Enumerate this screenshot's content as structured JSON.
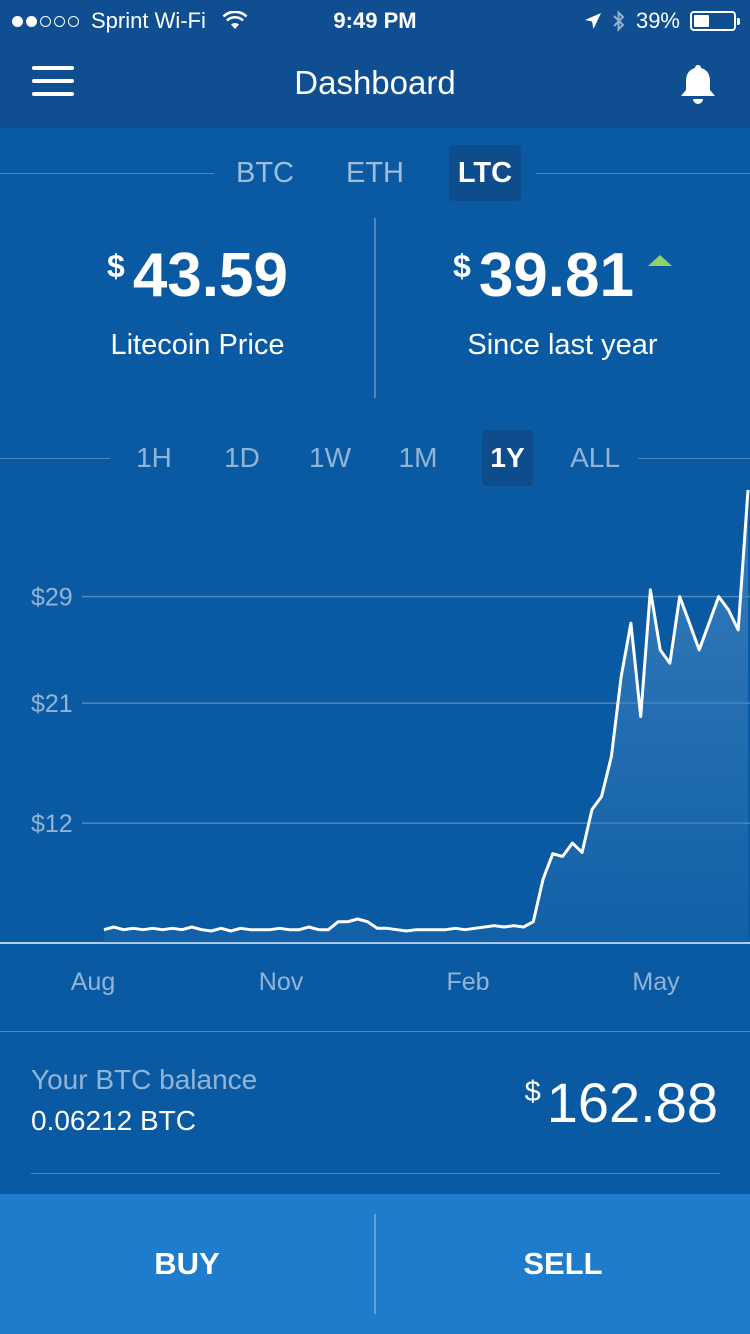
{
  "status": {
    "carrier": "Sprint Wi-Fi",
    "time": "9:49 PM",
    "battery": "39%",
    "battery_level": 0.39,
    "signal_bars": 2
  },
  "nav": {
    "title": "Dashboard"
  },
  "coin_tabs": [
    "BTC",
    "ETH",
    "LTC"
  ],
  "coin_tabs_active": "LTC",
  "price": {
    "currency_symbol": "$",
    "value": "43.59",
    "label": "Litecoin Price"
  },
  "change": {
    "currency_symbol": "$",
    "value": "39.81",
    "label": "Since last year",
    "direction": "up",
    "up_color": "#8fd16a"
  },
  "range_tabs": [
    "1H",
    "1D",
    "1W",
    "1M",
    "1Y",
    "ALL"
  ],
  "range_tabs_active": "1Y",
  "chart_data": {
    "type": "area",
    "title": "",
    "xlabel": "",
    "ylabel": "",
    "y_ticks": [
      "$29",
      "$21",
      "$12"
    ],
    "y_tick_values": [
      29,
      21,
      12
    ],
    "x_ticks": [
      "Aug",
      "Nov",
      "Feb",
      "May"
    ],
    "ylim": [
      3.0,
      37.0
    ],
    "series": [
      {
        "values": [
          4.0,
          4.2,
          4.0,
          4.1,
          4.0,
          4.1,
          4.0,
          4.1,
          4.0,
          4.2,
          4.0,
          3.9,
          4.1,
          3.9,
          4.1,
          4.0,
          4.0,
          4.0,
          4.1,
          4.0,
          4.0,
          4.2,
          4.0,
          4.0,
          4.6,
          4.6,
          4.8,
          4.6,
          4.1,
          4.1,
          4.0,
          3.9,
          4.0,
          4.0,
          4.0,
          4.0,
          4.1,
          4.0,
          4.1,
          4.2,
          4.3,
          4.2,
          4.3,
          4.2,
          4.6,
          7.8,
          9.7,
          9.5,
          10.5,
          9.8,
          13.0,
          14.0,
          17.0,
          23.0,
          27.0,
          20.0,
          29.5,
          25.0,
          24.0,
          29.0,
          27.0,
          25.0,
          27.0,
          29.0,
          28.0,
          26.5,
          37.0
        ]
      }
    ],
    "line_color": "#ffffff",
    "fill_color": "#3d82bf"
  },
  "balance": {
    "label": "Your BTC balance",
    "amount": "0.06212 BTC",
    "currency_symbol": "$",
    "usd_value": "162.88"
  },
  "actions": {
    "buy": "BUY",
    "sell": "SELL"
  }
}
